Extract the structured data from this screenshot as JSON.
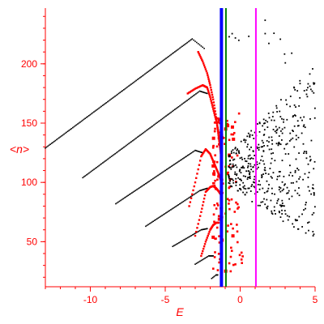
{
  "chart_data": {
    "type": "scatter",
    "title": "",
    "xlabel": "E",
    "ylabel": "<n>",
    "xlim": [
      -13,
      5
    ],
    "ylim": [
      12,
      247
    ],
    "x_ticks": [
      -10,
      -5,
      0,
      5
    ],
    "y_ticks": [
      50,
      100,
      150,
      200
    ],
    "grid": false,
    "legend": "none",
    "colors": {
      "axis": "#ff0000",
      "black_series": "#000000",
      "red_series": "#ff0000",
      "blue_line": "#0000ff",
      "green_line": "#008000",
      "magenta_line": "#ff00ff"
    },
    "black_bands": [
      {
        "x_start": -13.0,
        "y_start": 129,
        "x_peak": -3.2,
        "y_peak": 221,
        "x_end": -2.4,
        "y_end": 213
      },
      {
        "x_start": -10.5,
        "y_start": 104,
        "x_peak": -2.7,
        "y_peak": 177,
        "x_end": -2.2,
        "y_end": 175
      },
      {
        "x_start": -8.3,
        "y_start": 82,
        "x_peak": -3.0,
        "y_peak": 127,
        "x_end": -2.5,
        "y_end": 125
      },
      {
        "x_start": -6.3,
        "y_start": 63,
        "x_peak": -2.7,
        "y_peak": 93,
        "x_end": -2.2,
        "y_end": 95
      },
      {
        "x_start": -4.5,
        "y_start": 46,
        "x_peak": -2.6,
        "y_peak": 60,
        "x_end": -2.2,
        "y_end": 61
      },
      {
        "x_start": -3.0,
        "y_start": 31,
        "x_peak": -2.1,
        "y_peak": 38,
        "x_end": -1.8,
        "y_end": 38
      },
      {
        "x_start": -1.9,
        "y_start": 19,
        "x_peak": -1.6,
        "y_peak": 22,
        "x_end": -1.5,
        "y_end": 22
      }
    ],
    "red_curves": [
      {
        "x": [
          -2.8,
          -2.5,
          -2.2,
          -2.0,
          -1.8,
          -1.6,
          -1.5,
          -1.4,
          -1.3,
          -1.2
        ],
        "y": [
          210,
          202,
          192,
          182,
          170,
          155,
          145,
          135,
          125,
          115
        ]
      },
      {
        "x": [
          -3.5,
          -3.0,
          -2.5,
          -2.2,
          -2.0,
          -1.8,
          -1.6,
          -1.4,
          -1.3
        ],
        "y": [
          175,
          179,
          182,
          180,
          172,
          162,
          152,
          140,
          130
        ]
      },
      {
        "x": [
          -3.4,
          -3.0,
          -2.6,
          -2.3,
          -2.0,
          -1.8,
          -1.6,
          -1.4,
          -1.3
        ],
        "y": [
          80,
          100,
          122,
          128,
          124,
          118,
          112,
          106,
          102
        ]
      },
      {
        "x": [
          -3.0,
          -2.6,
          -2.3,
          -2.0,
          -1.8,
          -1.6,
          -1.4,
          -1.3
        ],
        "y": [
          55,
          75,
          92,
          96,
          97,
          95,
          92,
          90
        ]
      },
      {
        "x": [
          -2.6,
          -2.3,
          -2.0,
          -1.8,
          -1.6,
          -1.4
        ],
        "y": [
          38,
          50,
          60,
          64,
          66,
          66
        ]
      }
    ],
    "red_cloud": {
      "x_range": [
        -1.8,
        0.2
      ],
      "y_range": [
        25,
        160
      ],
      "count": 130
    },
    "black_cloud": {
      "x_range": [
        -0.8,
        5.0
      ],
      "y_range": [
        55,
        245
      ],
      "count": 480
    },
    "vertical_lines": [
      {
        "x": -1.25,
        "color": "blue"
      },
      {
        "x": -0.95,
        "color": "green"
      },
      {
        "x": 1.05,
        "color": "magenta"
      }
    ]
  }
}
